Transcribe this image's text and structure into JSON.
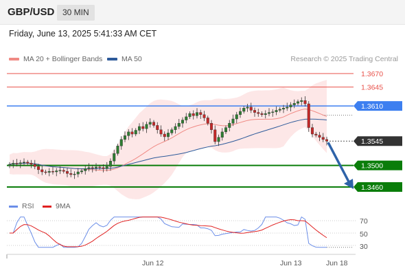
{
  "header": {
    "symbol": "GBP/USD",
    "timeframe": "30 MIN"
  },
  "datetime": "Friday, June 13, 2025 5:41:33 AM CET",
  "legend": {
    "ma20": "MA 20 + Bollinger Bands",
    "ma50": "MA 50",
    "credit": "Research © 2025 Trading Central"
  },
  "rsi_legend": {
    "rsi": "RSI",
    "ma": "9MA"
  },
  "colors": {
    "resistance": "#e8514a",
    "pivot": "#3d7ff0",
    "support": "#0a7d0a",
    "current": "#333333",
    "ma20": "#f08a84",
    "ma50": "#2d5a9a",
    "bollinger_fill": "#fde3e3",
    "up_candle": "#2e7d32",
    "down_candle": "#c62828",
    "arrow": "#2e63a8",
    "rsi_line": "#6b8ee8",
    "rsi_ma": "#e02020"
  },
  "levels": [
    {
      "name": "resistance-2",
      "price": 1.367,
      "label": "1.3670",
      "kind": "resistance"
    },
    {
      "name": "resistance-1",
      "price": 1.3645,
      "label": "1.3645",
      "kind": "resistance"
    },
    {
      "name": "pivot",
      "price": 1.361,
      "label": "1.3610",
      "kind": "pivot"
    },
    {
      "name": "current",
      "price": 1.3545,
      "label": "1.3545",
      "kind": "current"
    },
    {
      "name": "support-1",
      "price": 1.35,
      "label": "1.3500",
      "kind": "support"
    },
    {
      "name": "support-2",
      "price": 1.346,
      "label": "1.3460",
      "kind": "support"
    }
  ],
  "arrow_target": 1.346,
  "rsi_axis": {
    "ticks": [
      70,
      50,
      30
    ]
  },
  "x_axis": {
    "labels": [
      "Jun 12",
      "Jun 13",
      "Jun 18"
    ]
  },
  "chart_data": {
    "type": "candlestick",
    "candles_close": [
      1.3502,
      1.3504,
      1.3503,
      1.3505,
      1.3506,
      1.3504,
      1.3502,
      1.3498,
      1.3492,
      1.3488,
      1.3487,
      1.3489,
      1.3488,
      1.349,
      1.3491,
      1.3489,
      1.3485,
      1.3483,
      1.3484,
      1.3488,
      1.349,
      1.3494,
      1.3496,
      1.3495,
      1.3497,
      1.3496,
      1.3494,
      1.3498,
      1.3508,
      1.3522,
      1.3536,
      1.3548,
      1.3555,
      1.3562,
      1.3558,
      1.3565,
      1.3572,
      1.3568,
      1.3576,
      1.358,
      1.3574,
      1.3566,
      1.3558,
      1.3553,
      1.356,
      1.3566,
      1.3572,
      1.3578,
      1.3584,
      1.359,
      1.3596,
      1.3592,
      1.3598,
      1.3594,
      1.3588,
      1.3578,
      1.3566,
      1.3544,
      1.3552,
      1.3562,
      1.357,
      1.3578,
      1.3586,
      1.3594,
      1.36,
      1.3606,
      1.3608,
      1.3602,
      1.3598,
      1.3596,
      1.3594,
      1.3596,
      1.3598,
      1.3599,
      1.3602,
      1.3604,
      1.3606,
      1.3608,
      1.3612,
      1.3615,
      1.3618,
      1.362,
      1.3614,
      1.357,
      1.3558,
      1.3556,
      1.3552,
      1.3548,
      1.3545
    ]
  }
}
